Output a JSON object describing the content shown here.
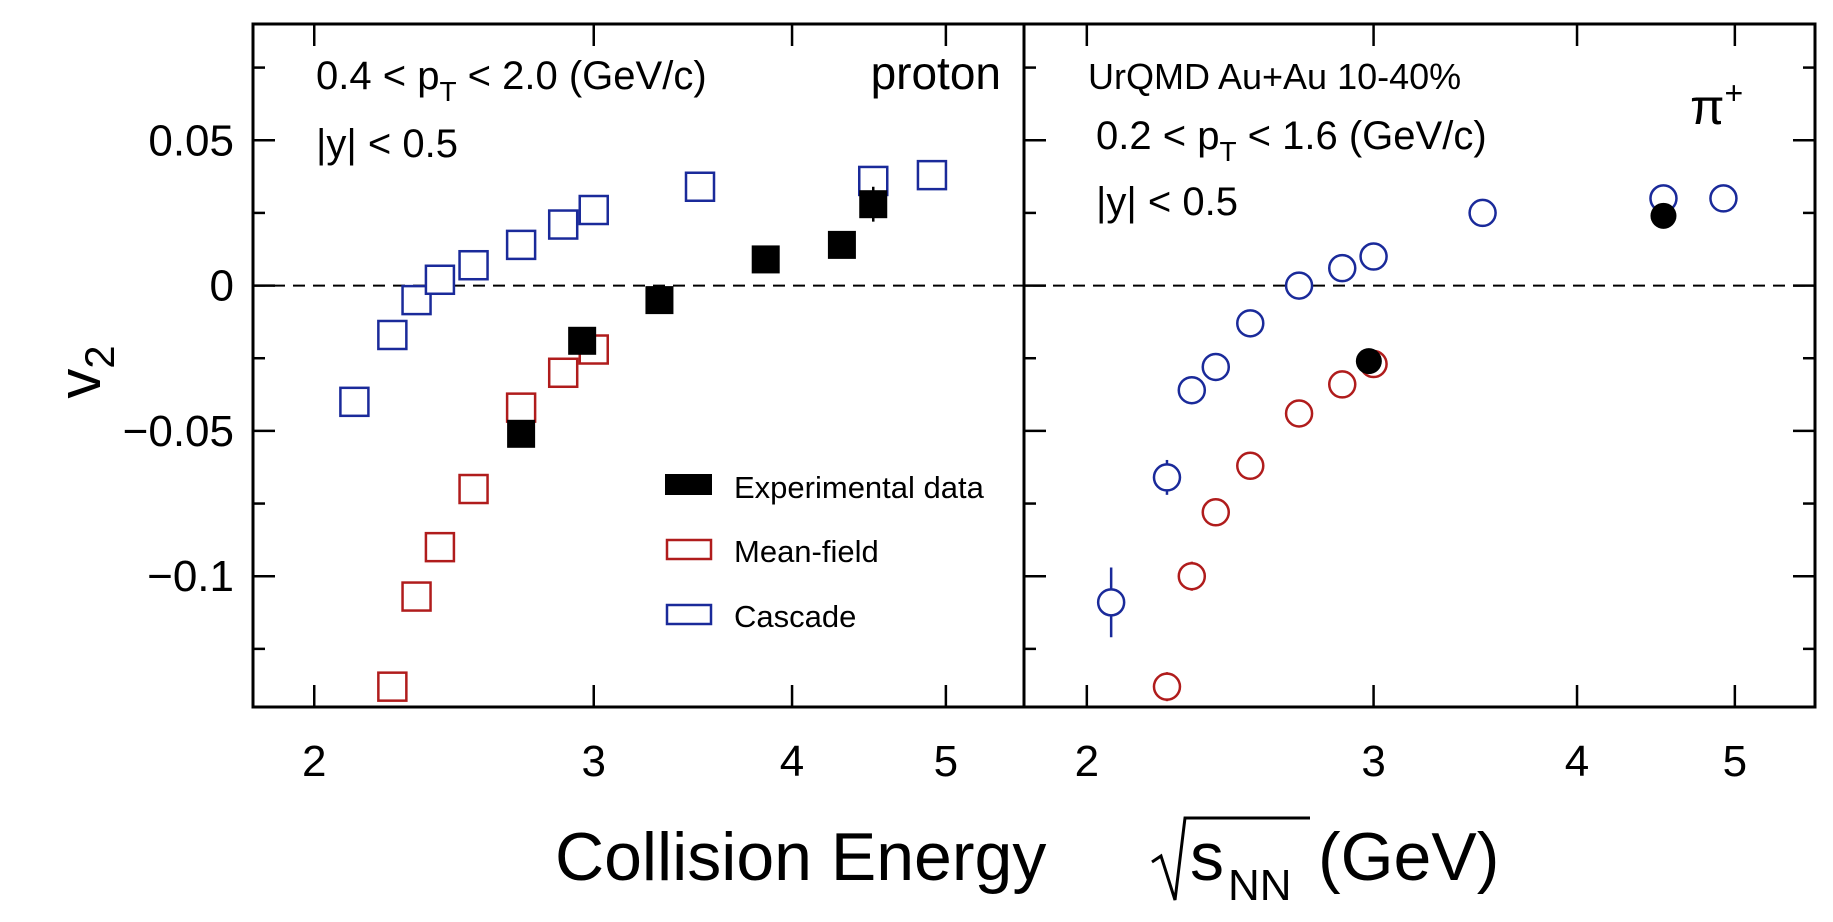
{
  "colors": {
    "experimental": "#000000",
    "mean_field": "#b01c1c",
    "cascade": "#1a2a9a"
  },
  "chart_data": {
    "type": "scatter",
    "y_axis": {
      "label": "v",
      "label_sub": "2",
      "ylim": [
        -0.145,
        0.09
      ],
      "ticks": [
        0.05,
        0,
        -0.05,
        -0.1
      ],
      "tick_labels": [
        "0.05",
        "0",
        "−0.05",
        "−0.1"
      ],
      "minor_ticks": [
        0.075,
        0.025,
        -0.025,
        -0.075,
        -0.125
      ]
    },
    "x_axis": {
      "label": "Collision Energy ",
      "label_sub": "NN",
      "label_s": "s",
      "label_unit": " (GeV)",
      "scale": "log",
      "ticks": [
        2,
        3,
        4,
        5
      ],
      "tick_labels": [
        "2",
        "3",
        "4",
        "5"
      ]
    },
    "reference_line": 0,
    "legend": {
      "position": "lower-right of left panel",
      "entries": [
        "Experimental data",
        "Mean-field",
        "Cascade"
      ]
    },
    "panels": [
      {
        "name": "proton",
        "marker": "square",
        "xlim": [
          1.83,
          5.6
        ],
        "label": "proton",
        "annotations": [
          {
            "text": "0.4 < p",
            "sub": "T",
            "rest": " < 2.0 (GeV/c)"
          },
          {
            "text": "|y| < 0.5"
          }
        ],
        "series": [
          {
            "name": "Experimental data",
            "style": "filled",
            "x": [
              2.7,
              2.95,
              3.3,
              3.85,
              4.3,
              4.5
            ],
            "y": [
              -0.051,
              -0.019,
              -0.005,
              0.009,
              0.014,
              0.028
            ],
            "err": [
              0,
              0,
              0,
              0,
              0,
              0.006
            ]
          },
          {
            "name": "Mean-field",
            "style": "open",
            "x": [
              2.24,
              2.32,
              2.4,
              2.52,
              2.7,
              2.87,
              3.0
            ],
            "y": [
              -0.138,
              -0.107,
              -0.09,
              -0.07,
              -0.042,
              -0.03,
              -0.022
            ],
            "err": [
              0,
              0,
              0,
              0,
              0,
              0,
              0
            ]
          },
          {
            "name": "Cascade",
            "style": "open",
            "x": [
              2.12,
              2.24,
              2.32,
              2.4,
              2.52,
              2.7,
              2.87,
              3.0,
              3.5,
              4.5,
              4.9
            ],
            "y": [
              -0.04,
              -0.017,
              -0.005,
              0.002,
              0.007,
              0.014,
              0.021,
              0.026,
              0.034,
              0.036,
              0.038
            ],
            "err": [
              0,
              0,
              0,
              0,
              0,
              0,
              0,
              0,
              0,
              0,
              0
            ]
          }
        ]
      },
      {
        "name": "pi+",
        "marker": "circle",
        "xlim": [
          1.83,
          5.6
        ],
        "label": "π",
        "label_sup": "+",
        "annotations": [
          {
            "text": "UrQMD Au+Au 10-40%"
          },
          {
            "text": "0.2 < p",
            "sub": "T",
            "rest": " < 1.6 (GeV/c)"
          },
          {
            "text": "|y| < 0.5"
          }
        ],
        "series": [
          {
            "name": "Experimental data",
            "style": "filled",
            "x": [
              2.98,
              4.52
            ],
            "y": [
              -0.026,
              0.024
            ],
            "err": [
              0,
              0
            ]
          },
          {
            "name": "Mean-field",
            "style": "open",
            "x": [
              2.24,
              2.32,
              2.4,
              2.52,
              2.7,
              2.87,
              3.0
            ],
            "y": [
              -0.138,
              -0.1,
              -0.078,
              -0.062,
              -0.044,
              -0.034,
              -0.027
            ],
            "err": [
              0.005,
              0.005,
              0,
              0,
              0,
              0,
              0
            ]
          },
          {
            "name": "Cascade",
            "style": "open",
            "x": [
              2.07,
              2.24,
              2.32,
              2.4,
              2.52,
              2.7,
              2.87,
              3.0,
              3.5,
              4.52,
              4.92
            ],
            "y": [
              -0.109,
              -0.066,
              -0.036,
              -0.028,
              -0.013,
              0.0,
              0.006,
              0.01,
              0.025,
              0.03,
              0.03
            ],
            "err": [
              0.012,
              0.006,
              0,
              0,
              0,
              0,
              0,
              0,
              0,
              0,
              0
            ]
          }
        ]
      }
    ]
  }
}
